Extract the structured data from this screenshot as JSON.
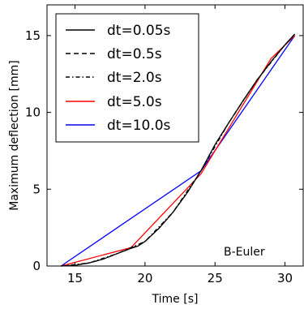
{
  "chart_data": {
    "type": "line",
    "xlabel": "Time [s]",
    "ylabel": "Maximum deflection [mm]",
    "xlim": [
      13.0,
      31.3
    ],
    "ylim": [
      0,
      17
    ],
    "xticks": [
      15,
      20,
      25,
      30
    ],
    "yticks": [
      0,
      5,
      10,
      15
    ],
    "annotation": "B-Euler",
    "legend_position": "top-left",
    "grid": false,
    "series": [
      {
        "name": "dt=0.05s",
        "color": "#000000",
        "dash": "solid",
        "x": [
          14.0,
          15.0,
          16.0,
          17.0,
          18.0,
          19.0,
          19.5,
          20.0,
          21.0,
          22.0,
          23.0,
          24.0,
          25.0,
          26.0,
          27.0,
          28.0,
          29.0,
          30.0,
          30.7
        ],
        "y": [
          0.0,
          0.05,
          0.2,
          0.45,
          0.8,
          1.15,
          1.3,
          1.6,
          2.45,
          3.5,
          4.75,
          6.2,
          7.9,
          9.35,
          10.75,
          12.1,
          13.3,
          14.4,
          15.1
        ]
      },
      {
        "name": "dt=0.5s",
        "color": "#000000",
        "dash": "dashed",
        "x": [
          14.0,
          15.0,
          16.0,
          17.0,
          18.0,
          19.0,
          20.0,
          21.0,
          22.0,
          23.0,
          24.0,
          25.0,
          26.0,
          27.0,
          28.0,
          29.0,
          30.0,
          30.7
        ],
        "y": [
          0.0,
          0.05,
          0.2,
          0.45,
          0.8,
          1.15,
          1.6,
          2.45,
          3.5,
          4.75,
          6.2,
          7.9,
          9.35,
          10.75,
          12.1,
          13.3,
          14.4,
          15.1
        ]
      },
      {
        "name": "dt=2.0s",
        "color": "#000000",
        "dash": "dashdot",
        "x": [
          14.0,
          16.0,
          18.0,
          20.0,
          22.0,
          24.0,
          26.0,
          28.0,
          30.0,
          30.7
        ],
        "y": [
          0.0,
          0.2,
          0.8,
          1.6,
          3.5,
          6.2,
          9.35,
          12.1,
          14.4,
          15.1
        ]
      },
      {
        "name": "dt=5.0s",
        "color": "#ff0000",
        "dash": "solid",
        "x": [
          14.0,
          19.0,
          24.0,
          29.0,
          30.7
        ],
        "y": [
          0.0,
          1.2,
          6.0,
          13.5,
          15.0
        ]
      },
      {
        "name": "dt=10.0s",
        "color": "#0000ff",
        "dash": "solid",
        "x": [
          14.0,
          24.0,
          30.7
        ],
        "y": [
          0.0,
          6.2,
          15.0
        ]
      }
    ]
  }
}
